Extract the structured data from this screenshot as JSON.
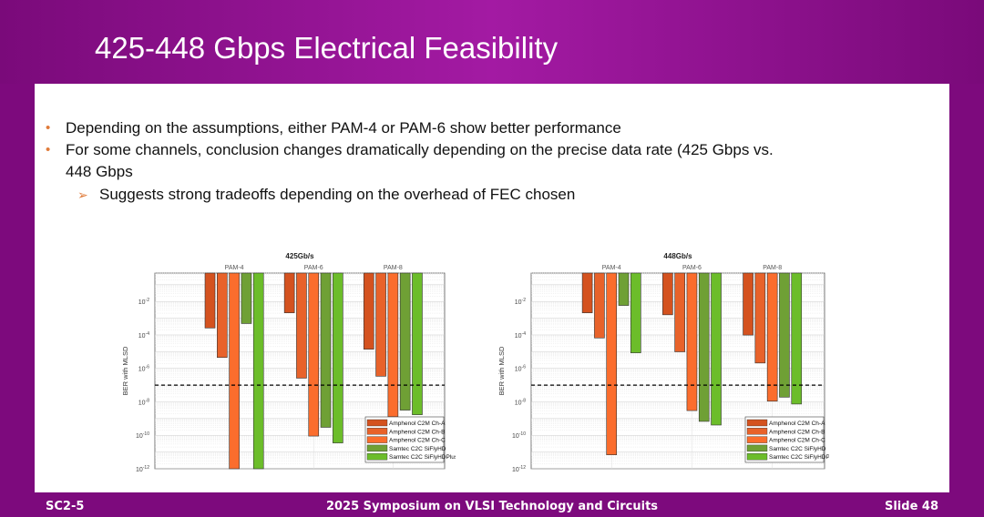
{
  "header": {
    "title": "425-448 Gbps Electrical Feasibility"
  },
  "bullets": [
    {
      "type": "dot",
      "text": "Depending on the assumptions, either PAM-4 or PAM-6 show better performance"
    },
    {
      "type": "dot",
      "text": "For some channels, conclusion changes dramatically depending on the precise data rate (425 Gbps vs.",
      "text2": "448 Gbps"
    },
    {
      "type": "arrow",
      "text": "Suggests strong tradeoffs depending on the overhead of FEC chosen"
    }
  ],
  "footer": {
    "left": "SC2-5",
    "center": "2025 Symposium on VLSI Technology and Circuits",
    "right": "Slide 48"
  },
  "colors": {
    "header": "#9a149a",
    "bullet": "#e07b3a",
    "series": [
      "#d4521f",
      "#e8622a",
      "#fb6d2d",
      "#6fa035",
      "#6cbd2a"
    ]
  },
  "chart_data": [
    {
      "type": "bar",
      "title": "425Gb/s",
      "ylabel": "BER with MLSD",
      "yscale": "log",
      "ylim": [
        1e-12,
        0.5
      ],
      "yticks": [
        "10^-2",
        "10^-4",
        "10^-6",
        "10^-8",
        "10^-10",
        "10^-12"
      ],
      "grid": true,
      "legend": "bottom-right",
      "threshold": 1e-07,
      "categories": [
        "PAM-4",
        "PAM-6",
        "PAM-8"
      ],
      "series": [
        {
          "name": "Amphenol C2M Ch-A",
          "values": [
            0.00026,
            0.0021,
            1.4e-05
          ]
        },
        {
          "name": "Amphenol C2M Ch-B",
          "values": [
            4.5e-06,
            2.6e-07,
            3.4e-07
          ]
        },
        {
          "name": "Amphenol C2M Ch-C",
          "values": [
            1e-12,
            9e-11,
            1.3e-09
          ]
        },
        {
          "name": "Samtec C2C SiFlyHD",
          "values": [
            0.00048,
            3e-10,
            3.2e-09
          ]
        },
        {
          "name": "Samtec C2C SiFlyHDPlus",
          "values": [
            1e-12,
            3.5e-11,
            1.7e-09
          ]
        }
      ]
    },
    {
      "type": "bar",
      "title": "448Gb/s",
      "ylabel": "BER with MLSD",
      "yscale": "log",
      "ylim": [
        1e-12,
        0.5
      ],
      "yticks": [
        "10^-2",
        "10^-4",
        "10^-6",
        "10^-8",
        "10^-10",
        "10^-12"
      ],
      "grid": true,
      "legend": "bottom-right",
      "threshold": 1e-07,
      "categories": [
        "PAM-4",
        "PAM-6",
        "PAM-8"
      ],
      "series": [
        {
          "name": "Amphenol C2M Ch-A",
          "values": [
            0.0021,
            0.0016,
            9.8e-05
          ]
        },
        {
          "name": "Amphenol C2M Ch-B",
          "values": [
            6.6e-05,
            9.8e-06,
            2.1e-06
          ]
        },
        {
          "name": "Amphenol C2M Ch-C",
          "values": [
            6.8e-12,
            3e-09,
            1.1e-08
          ]
        },
        {
          "name": "Samtec C2C SiFlyHD",
          "values": [
            0.0058,
            6.8e-10,
            1.9e-08
          ]
        },
        {
          "name": "Samtec C2C SiFlyHDPlus",
          "values": [
            8.5e-06,
            4.1e-10,
            7.4e-09
          ]
        }
      ]
    }
  ]
}
